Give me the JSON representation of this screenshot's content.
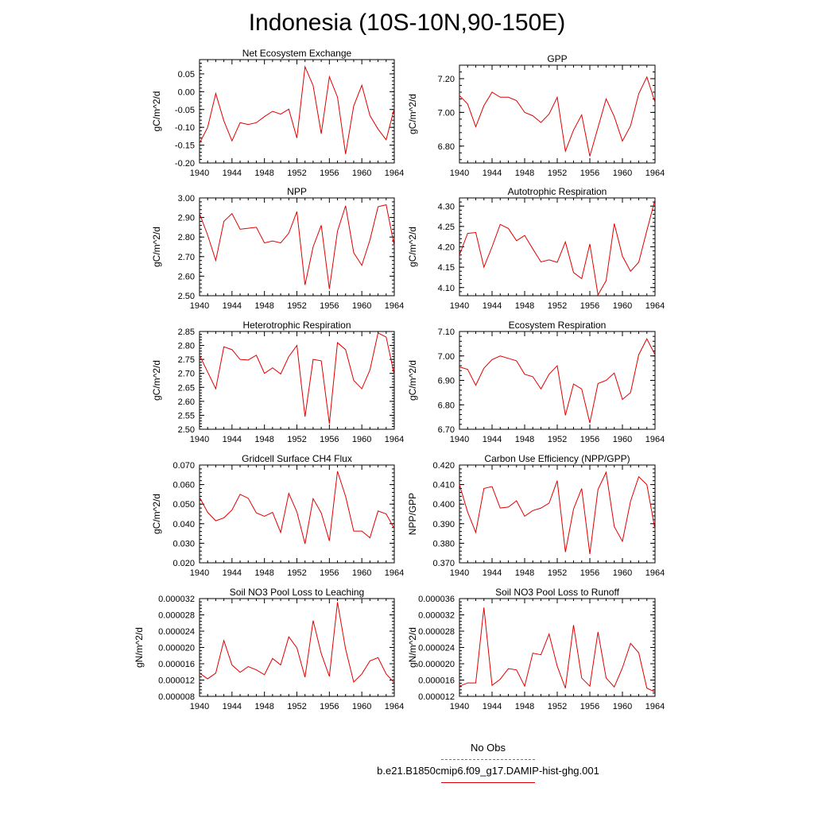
{
  "title": "Indonesia (10S-10N,90-150E)",
  "legend": {
    "items": [
      {
        "label": "No Obs",
        "color": "#6a6ad0",
        "dash": true
      },
      {
        "label": "b.e21.B1850cmip6.f09_g17.DAMIP-hist-ghg.001",
        "color": "#e00000",
        "dash": false
      }
    ]
  },
  "chart_data": [
    {
      "type": "line",
      "title": "Net Ecosystem Exchange",
      "xlabel": "",
      "ylabel": "gC/m^2/d",
      "xlim": [
        1940,
        1964
      ],
      "ylim": [
        -0.2,
        0.09
      ],
      "xticks": [
        "1940",
        "1944",
        "1948",
        "1952",
        "1956",
        "1960",
        "1964"
      ],
      "xtick_values": [
        1940,
        1944,
        1948,
        1952,
        1956,
        1960,
        1964
      ],
      "yticks": [
        "-0.20",
        "-0.15",
        "-0.10",
        "-0.05",
        "0.00",
        "0.05"
      ],
      "ytick_values": [
        -0.2,
        -0.15,
        -0.1,
        -0.05,
        0.0,
        0.05
      ],
      "series": [
        {
          "color": "#e00000",
          "x": [
            1940,
            1941,
            1942,
            1943,
            1944,
            1945,
            1946,
            1947,
            1948,
            1949,
            1950,
            1951,
            1952,
            1953,
            1954,
            1955,
            1956,
            1957,
            1958,
            1959,
            1960,
            1961,
            1962,
            1963,
            1964
          ],
          "values": [
            -0.145,
            -0.1,
            -0.005,
            -0.082,
            -0.138,
            -0.087,
            -0.092,
            -0.087,
            -0.07,
            -0.055,
            -0.063,
            -0.049,
            -0.13,
            0.07,
            0.017,
            -0.118,
            0.042,
            -0.015,
            -0.175,
            -0.04,
            0.018,
            -0.067,
            -0.105,
            -0.135,
            -0.047
          ]
        }
      ]
    },
    {
      "type": "line",
      "title": "GPP",
      "xlabel": "",
      "ylabel": "gC/m^2/d",
      "xlim": [
        1940,
        1964
      ],
      "ylim": [
        6.7,
        7.28
      ],
      "xticks": [
        "1940",
        "1944",
        "1948",
        "1952",
        "1956",
        "1960",
        "1964"
      ],
      "xtick_values": [
        1940,
        1944,
        1948,
        1952,
        1956,
        1960,
        1964
      ],
      "yticks": [
        "6.80",
        "7.00",
        "7.20"
      ],
      "ytick_values": [
        6.8,
        7.0,
        7.2
      ],
      "series": [
        {
          "color": "#e00000",
          "x": [
            1940,
            1941,
            1942,
            1943,
            1944,
            1945,
            1946,
            1947,
            1948,
            1949,
            1950,
            1951,
            1952,
            1953,
            1954,
            1955,
            1956,
            1957,
            1958,
            1959,
            1960,
            1961,
            1962,
            1963,
            1964
          ],
          "values": [
            7.1,
            7.05,
            6.915,
            7.04,
            7.12,
            7.09,
            7.09,
            7.07,
            7.0,
            6.98,
            6.94,
            6.99,
            7.09,
            6.77,
            6.895,
            6.985,
            6.74,
            6.91,
            7.08,
            6.975,
            6.83,
            6.92,
            7.11,
            7.21,
            7.06
          ]
        }
      ]
    },
    {
      "type": "line",
      "title": "NPP",
      "xlabel": "",
      "ylabel": "gC/m^2/d",
      "xlim": [
        1940,
        1964
      ],
      "ylim": [
        2.5,
        3.0
      ],
      "xticks": [
        "1940",
        "1944",
        "1948",
        "1952",
        "1956",
        "1960",
        "1964"
      ],
      "xtick_values": [
        1940,
        1944,
        1948,
        1952,
        1956,
        1960,
        1964
      ],
      "yticks": [
        "2.50",
        "2.60",
        "2.70",
        "2.80",
        "2.90",
        "3.00"
      ],
      "ytick_values": [
        2.5,
        2.6,
        2.7,
        2.8,
        2.9,
        3.0
      ],
      "series": [
        {
          "color": "#e00000",
          "x": [
            1940,
            1941,
            1942,
            1943,
            1944,
            1945,
            1946,
            1947,
            1948,
            1949,
            1950,
            1951,
            1952,
            1953,
            1954,
            1955,
            1956,
            1957,
            1958,
            1959,
            1960,
            1961,
            1962,
            1963,
            1964
          ],
          "values": [
            2.92,
            2.81,
            2.68,
            2.88,
            2.92,
            2.84,
            2.845,
            2.85,
            2.77,
            2.78,
            2.77,
            2.82,
            2.93,
            2.555,
            2.75,
            2.86,
            2.535,
            2.83,
            2.96,
            2.72,
            2.655,
            2.785,
            2.955,
            2.965,
            2.755
          ]
        }
      ]
    },
    {
      "type": "line",
      "title": "Autotrophic Respiration",
      "xlabel": "",
      "ylabel": "gC/m^2/d",
      "xlim": [
        1940,
        1964
      ],
      "ylim": [
        4.08,
        4.32
      ],
      "xticks": [
        "1940",
        "1944",
        "1948",
        "1952",
        "1956",
        "1960",
        "1964"
      ],
      "xtick_values": [
        1940,
        1944,
        1948,
        1952,
        1956,
        1960,
        1964
      ],
      "yticks": [
        "4.10",
        "4.15",
        "4.20",
        "4.25",
        "4.30"
      ],
      "ytick_values": [
        4.1,
        4.15,
        4.2,
        4.25,
        4.3
      ],
      "series": [
        {
          "color": "#e00000",
          "x": [
            1940,
            1941,
            1942,
            1943,
            1944,
            1945,
            1946,
            1947,
            1948,
            1949,
            1950,
            1951,
            1952,
            1953,
            1954,
            1955,
            1956,
            1957,
            1958,
            1959,
            1960,
            1961,
            1962,
            1963,
            1964
          ],
          "values": [
            4.18,
            4.233,
            4.235,
            4.15,
            4.2,
            4.255,
            4.245,
            4.215,
            4.228,
            4.195,
            4.163,
            4.168,
            4.162,
            4.212,
            4.137,
            4.122,
            4.207,
            4.082,
            4.117,
            4.257,
            4.177,
            4.14,
            4.162,
            4.24,
            4.316
          ]
        }
      ]
    },
    {
      "type": "line",
      "title": "Heterotrophic Respiration",
      "xlabel": "",
      "ylabel": "gC/m^2/d",
      "xlim": [
        1940,
        1964
      ],
      "ylim": [
        2.5,
        2.85
      ],
      "xticks": [
        "1940",
        "1944",
        "1948",
        "1952",
        "1956",
        "1960",
        "1964"
      ],
      "xtick_values": [
        1940,
        1944,
        1948,
        1952,
        1956,
        1960,
        1964
      ],
      "yticks": [
        "2.50",
        "2.55",
        "2.60",
        "2.65",
        "2.70",
        "2.75",
        "2.80",
        "2.85"
      ],
      "ytick_values": [
        2.5,
        2.55,
        2.6,
        2.65,
        2.7,
        2.75,
        2.8,
        2.85
      ],
      "series": [
        {
          "color": "#e00000",
          "x": [
            1940,
            1941,
            1942,
            1943,
            1944,
            1945,
            1946,
            1947,
            1948,
            1949,
            1950,
            1951,
            1952,
            1953,
            1954,
            1955,
            1956,
            1957,
            1958,
            1959,
            1960,
            1961,
            1962,
            1963,
            1964
          ],
          "values": [
            2.765,
            2.705,
            2.645,
            2.795,
            2.785,
            2.75,
            2.748,
            2.765,
            2.7,
            2.72,
            2.698,
            2.76,
            2.8,
            2.545,
            2.75,
            2.745,
            2.52,
            2.81,
            2.785,
            2.675,
            2.645,
            2.712,
            2.845,
            2.83,
            2.695
          ]
        }
      ]
    },
    {
      "type": "line",
      "title": "Ecosystem Respiration",
      "xlabel": "",
      "ylabel": "gC/m^2/d",
      "xlim": [
        1940,
        1964
      ],
      "ylim": [
        6.7,
        7.1
      ],
      "xticks": [
        "1940",
        "1944",
        "1948",
        "1952",
        "1956",
        "1960",
        "1964"
      ],
      "xtick_values": [
        1940,
        1944,
        1948,
        1952,
        1956,
        1960,
        1964
      ],
      "yticks": [
        "6.70",
        "6.80",
        "6.90",
        "7.00",
        "7.10"
      ],
      "ytick_values": [
        6.7,
        6.8,
        6.9,
        7.0,
        7.1
      ],
      "series": [
        {
          "color": "#e00000",
          "x": [
            1940,
            1941,
            1942,
            1943,
            1944,
            1945,
            1946,
            1947,
            1948,
            1949,
            1950,
            1951,
            1952,
            1953,
            1954,
            1955,
            1956,
            1957,
            1958,
            1959,
            1960,
            1961,
            1962,
            1963,
            1964
          ],
          "values": [
            6.955,
            6.945,
            6.88,
            6.95,
            6.985,
            7.0,
            6.99,
            6.98,
            6.925,
            6.915,
            6.865,
            6.925,
            6.96,
            6.757,
            6.885,
            6.865,
            6.726,
            6.887,
            6.9,
            6.93,
            6.822,
            6.85,
            7.005,
            7.07,
            7.005
          ]
        }
      ]
    },
    {
      "type": "line",
      "title": "Gridcell Surface CH4 Flux",
      "xlabel": "",
      "ylabel": "gC/m^2/d",
      "xlim": [
        1940,
        1964
      ],
      "ylim": [
        0.02,
        0.07
      ],
      "xticks": [
        "1940",
        "1944",
        "1948",
        "1952",
        "1956",
        "1960",
        "1964"
      ],
      "xtick_values": [
        1940,
        1944,
        1948,
        1952,
        1956,
        1960,
        1964
      ],
      "yticks": [
        "0.020",
        "0.030",
        "0.040",
        "0.050",
        "0.060",
        "0.070"
      ],
      "ytick_values": [
        0.02,
        0.03,
        0.04,
        0.05,
        0.06,
        0.07
      ],
      "series": [
        {
          "color": "#e00000",
          "x": [
            1940,
            1941,
            1942,
            1943,
            1944,
            1945,
            1946,
            1947,
            1948,
            1949,
            1950,
            1951,
            1952,
            1953,
            1954,
            1955,
            1956,
            1957,
            1958,
            1959,
            1960,
            1961,
            1962,
            1963,
            1964
          ],
          "values": [
            0.0535,
            0.0458,
            0.0415,
            0.043,
            0.047,
            0.055,
            0.053,
            0.0455,
            0.0438,
            0.0458,
            0.0355,
            0.0555,
            0.046,
            0.0297,
            0.0528,
            0.0455,
            0.0312,
            0.0668,
            0.054,
            0.0362,
            0.0362,
            0.0328,
            0.0465,
            0.045,
            0.0375
          ]
        }
      ]
    },
    {
      "type": "line",
      "title": "Carbon Use Efficiency (NPP/GPP)",
      "xlabel": "",
      "ylabel": "NPP/GPP",
      "xlim": [
        1940,
        1964
      ],
      "ylim": [
        0.37,
        0.42
      ],
      "xticks": [
        "1940",
        "1944",
        "1948",
        "1952",
        "1956",
        "1960",
        "1964"
      ],
      "xtick_values": [
        1940,
        1944,
        1948,
        1952,
        1956,
        1960,
        1964
      ],
      "yticks": [
        "0.370",
        "0.380",
        "0.390",
        "0.400",
        "0.410",
        "0.420"
      ],
      "ytick_values": [
        0.37,
        0.38,
        0.39,
        0.4,
        0.41,
        0.42
      ],
      "series": [
        {
          "color": "#e00000",
          "x": [
            1940,
            1941,
            1942,
            1943,
            1944,
            1945,
            1946,
            1947,
            1948,
            1949,
            1950,
            1951,
            1952,
            1953,
            1954,
            1955,
            1956,
            1957,
            1958,
            1959,
            1960,
            1961,
            1962,
            1963,
            1964
          ],
          "values": [
            0.41,
            0.396,
            0.3855,
            0.408,
            0.409,
            0.398,
            0.3985,
            0.4017,
            0.3938,
            0.3967,
            0.398,
            0.4005,
            0.412,
            0.3755,
            0.3975,
            0.408,
            0.3745,
            0.4075,
            0.4163,
            0.3885,
            0.381,
            0.4015,
            0.414,
            0.41,
            0.387
          ]
        }
      ]
    },
    {
      "type": "line",
      "title": "Soil NO3 Pool Loss to Leaching",
      "xlabel": "",
      "ylabel": "gN/m^2/d",
      "xlim": [
        1940,
        1964
      ],
      "ylim": [
        8e-06,
        3.2e-05
      ],
      "xticks": [
        "1940",
        "1944",
        "1948",
        "1952",
        "1956",
        "1960",
        "1964"
      ],
      "xtick_values": [
        1940,
        1944,
        1948,
        1952,
        1956,
        1960,
        1964
      ],
      "yticks": [
        "0.000008",
        "0.000012",
        "0.000016",
        "0.000020",
        "0.000024",
        "0.000028",
        "0.000032"
      ],
      "ytick_values": [
        8e-06,
        1.2e-05,
        1.6e-05,
        2e-05,
        2.4e-05,
        2.8e-05,
        3.2e-05
      ],
      "series": [
        {
          "color": "#e00000",
          "x": [
            1940,
            1941,
            1942,
            1943,
            1944,
            1945,
            1946,
            1947,
            1948,
            1949,
            1950,
            1951,
            1952,
            1953,
            1954,
            1955,
            1956,
            1957,
            1958,
            1959,
            1960,
            1961,
            1962,
            1963,
            1964
          ],
          "values": [
            1.37e-05,
            1.23e-05,
            1.37e-05,
            2.17e-05,
            1.57e-05,
            1.39e-05,
            1.53e-05,
            1.45e-05,
            1.33e-05,
            1.73e-05,
            1.57e-05,
            2.26e-05,
            1.99e-05,
            1.27e-05,
            2.66e-05,
            1.85e-05,
            1.29e-05,
            3.11e-05,
            1.96e-05,
            1.15e-05,
            1.35e-05,
            1.67e-05,
            1.75e-05,
            1.35e-05,
            1.13e-05
          ]
        }
      ]
    },
    {
      "type": "line",
      "title": "Soil NO3 Pool Loss to Runoff",
      "xlabel": "",
      "ylabel": "gN/m^2/d",
      "xlim": [
        1940,
        1964
      ],
      "ylim": [
        1.2e-05,
        3.6e-05
      ],
      "xticks": [
        "1940",
        "1944",
        "1948",
        "1952",
        "1956",
        "1960",
        "1964"
      ],
      "xtick_values": [
        1940,
        1944,
        1948,
        1952,
        1956,
        1960,
        1964
      ],
      "yticks": [
        "0.000012",
        "0.000016",
        "0.000020",
        "0.000024",
        "0.000028",
        "0.000032",
        "0.000036"
      ],
      "ytick_values": [
        1.2e-05,
        1.6e-05,
        2e-05,
        2.4e-05,
        2.8e-05,
        3.2e-05,
        3.6e-05
      ],
      "series": [
        {
          "color": "#e00000",
          "x": [
            1940,
            1941,
            1942,
            1943,
            1944,
            1945,
            1946,
            1947,
            1948,
            1949,
            1950,
            1951,
            1952,
            1953,
            1954,
            1955,
            1956,
            1957,
            1958,
            1959,
            1960,
            1961,
            1962,
            1963,
            1964
          ],
          "values": [
            1.45e-05,
            1.53e-05,
            1.53e-05,
            3.38e-05,
            1.47e-05,
            1.62e-05,
            1.88e-05,
            1.85e-05,
            1.45e-05,
            2.26e-05,
            2.22e-05,
            2.73e-05,
            1.94e-05,
            1.4e-05,
            2.95e-05,
            1.65e-05,
            1.45e-05,
            2.78e-05,
            1.65e-05,
            1.43e-05,
            1.9e-05,
            2.5e-05,
            2.27e-05,
            1.4e-05,
            1.31e-05
          ]
        }
      ]
    }
  ]
}
